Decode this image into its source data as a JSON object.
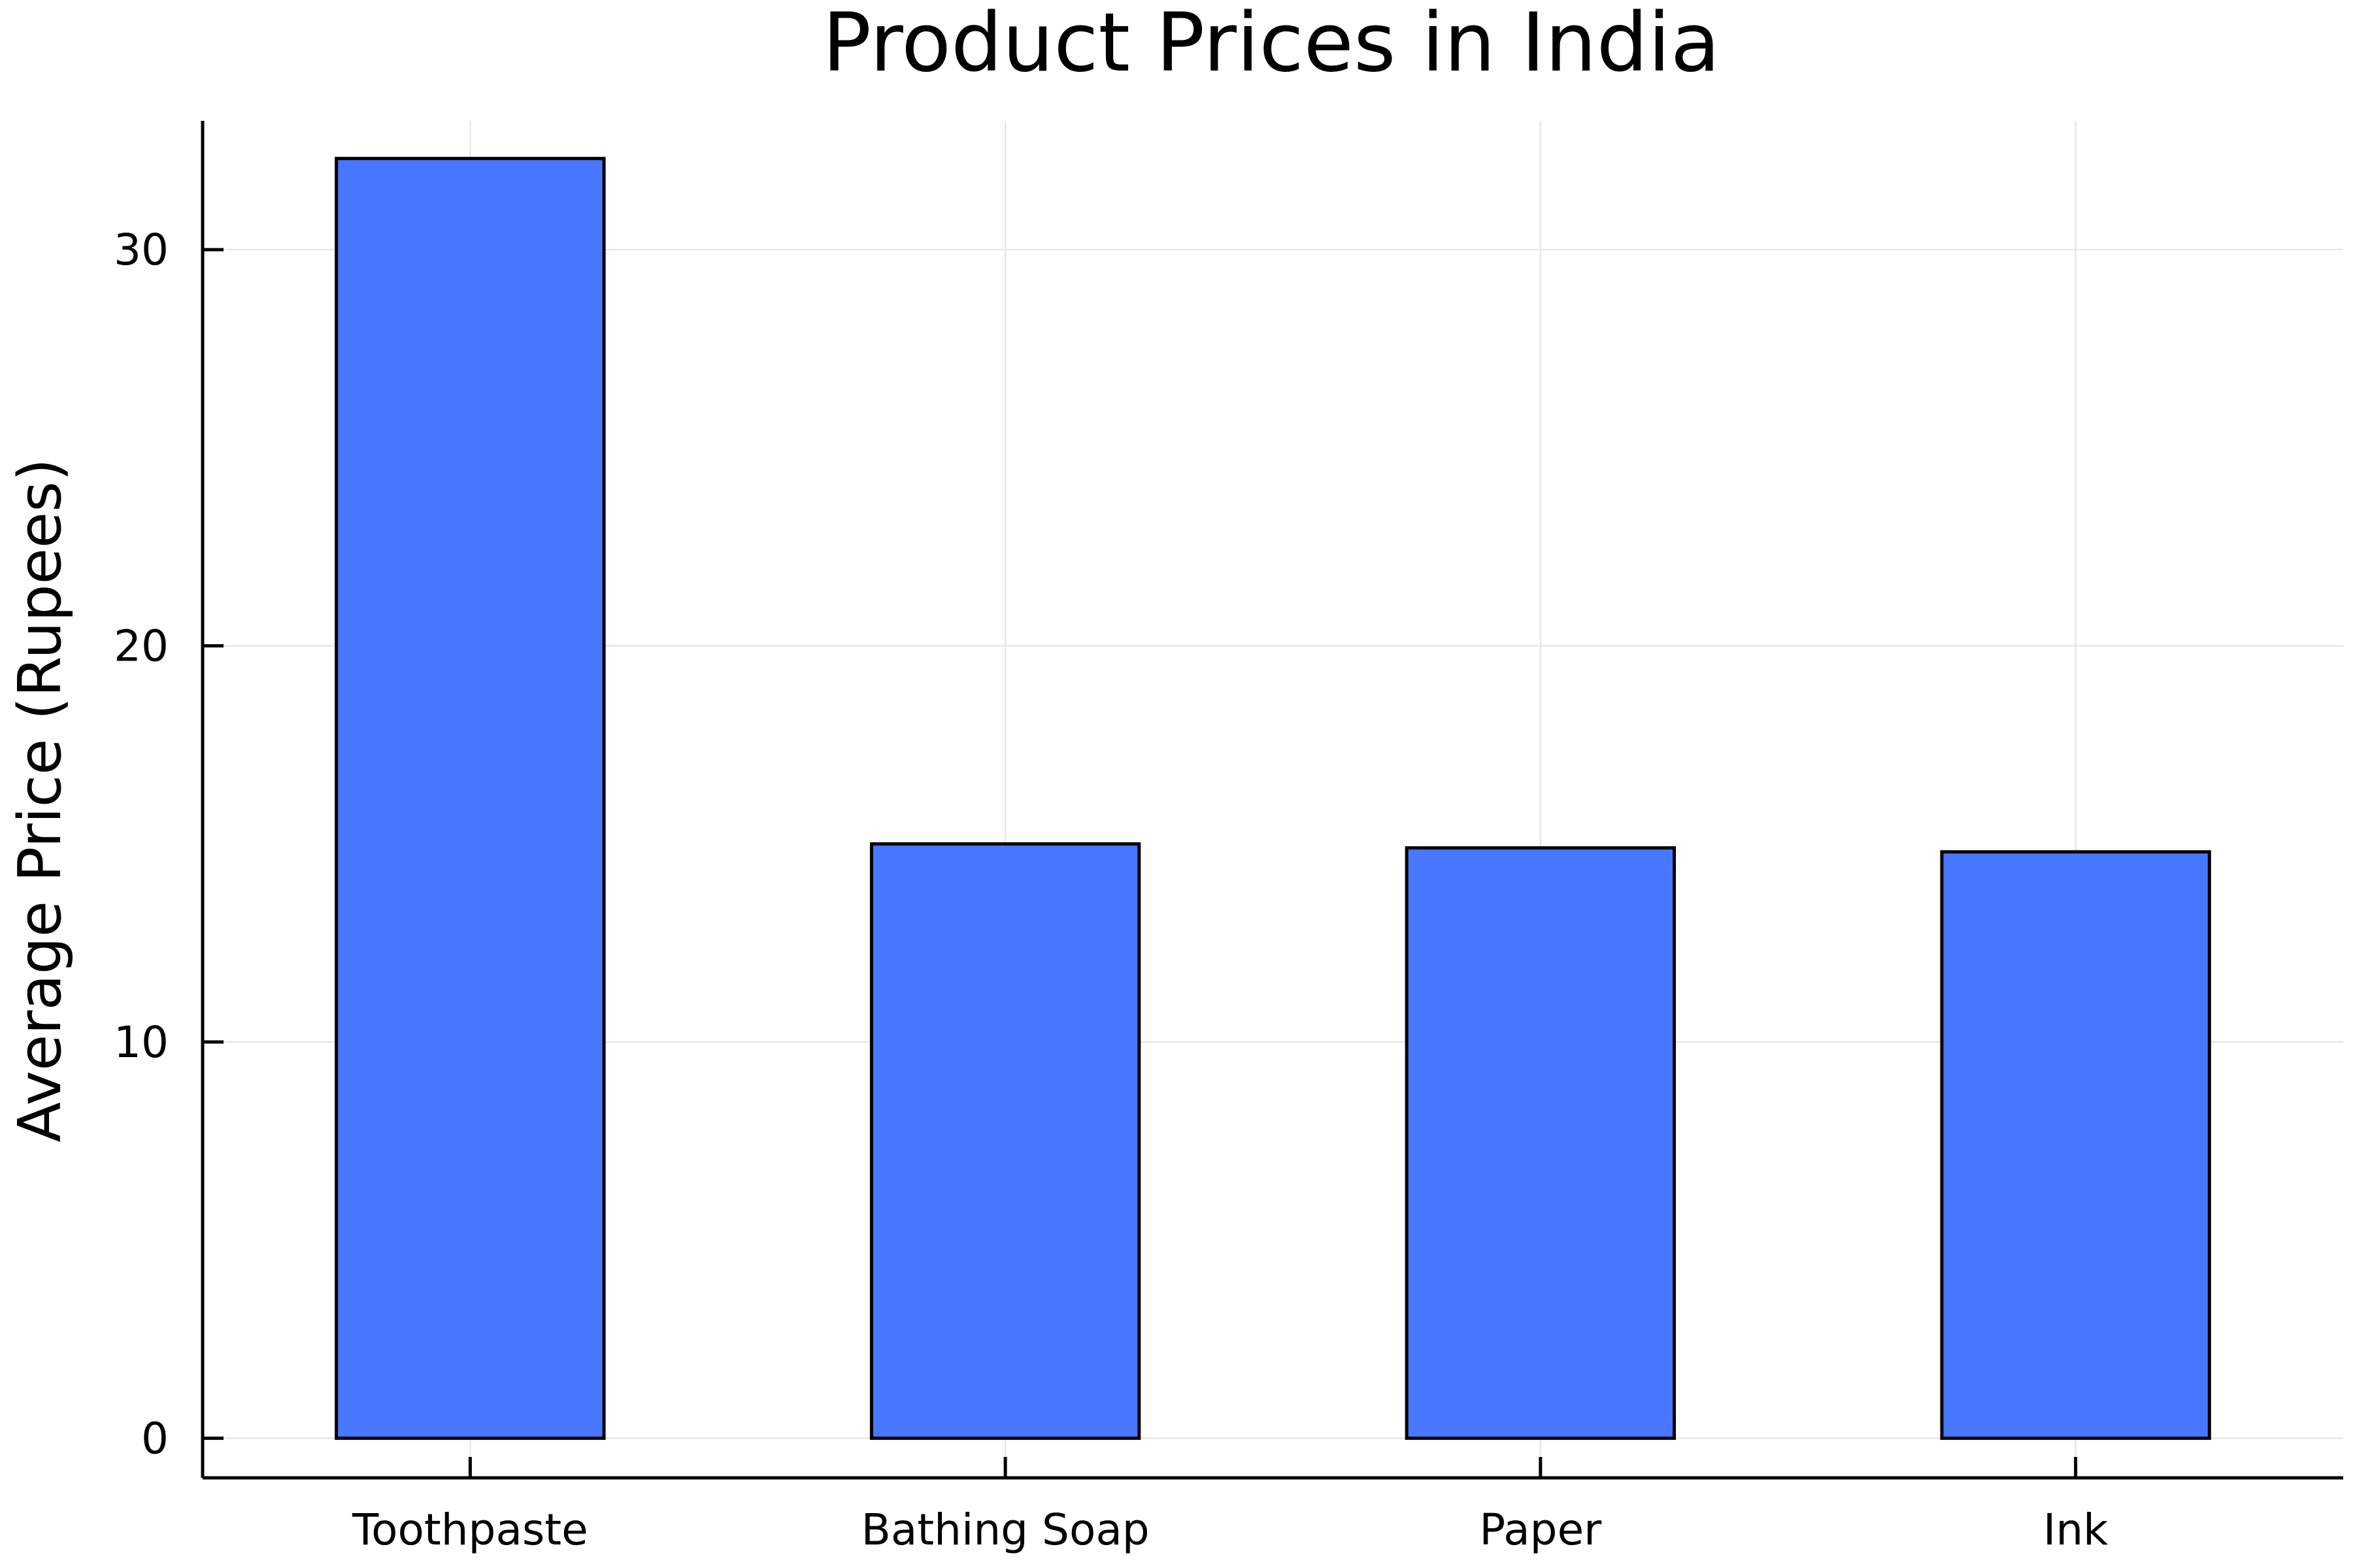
{
  "chart_data": {
    "type": "bar",
    "title": "Product Prices in India",
    "xlabel": "",
    "ylabel": "Average Price (Rupees)",
    "categories": [
      "Toothpaste",
      "Bathing Soap",
      "Paper",
      "Ink"
    ],
    "values": [
      32.3,
      15.0,
      14.9,
      14.8
    ],
    "ylim": [
      -1,
      33.25
    ],
    "yticks": [
      0,
      10,
      20,
      30
    ],
    "grid": true,
    "legend": "none",
    "bar_color": "#4878ff"
  }
}
